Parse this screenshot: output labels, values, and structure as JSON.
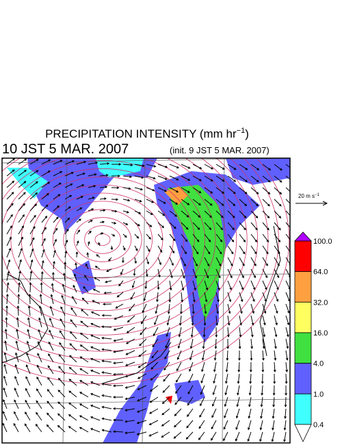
{
  "header": {
    "title": "PRECIPITATION INTENSITY (mm hr",
    "title_superscript": "−1",
    "title_suffix": ")",
    "valid_time": "10 JST 5 MAR. 2007",
    "init_time": "(init. 9 JST 5 MAR. 2007)"
  },
  "wind_scale": {
    "label": "20 m s",
    "label_superscript": "−1"
  },
  "colorbar": {
    "labels": [
      "100.0",
      "64.0",
      "32.0",
      "16.0",
      "4.0",
      "1.0",
      "0.4"
    ],
    "colors": [
      "#b000ff",
      "#ff0000",
      "#ffa040",
      "#ffff60",
      "#40e040",
      "#6060ff",
      "#40ffff",
      "#ffffff"
    ]
  }
}
